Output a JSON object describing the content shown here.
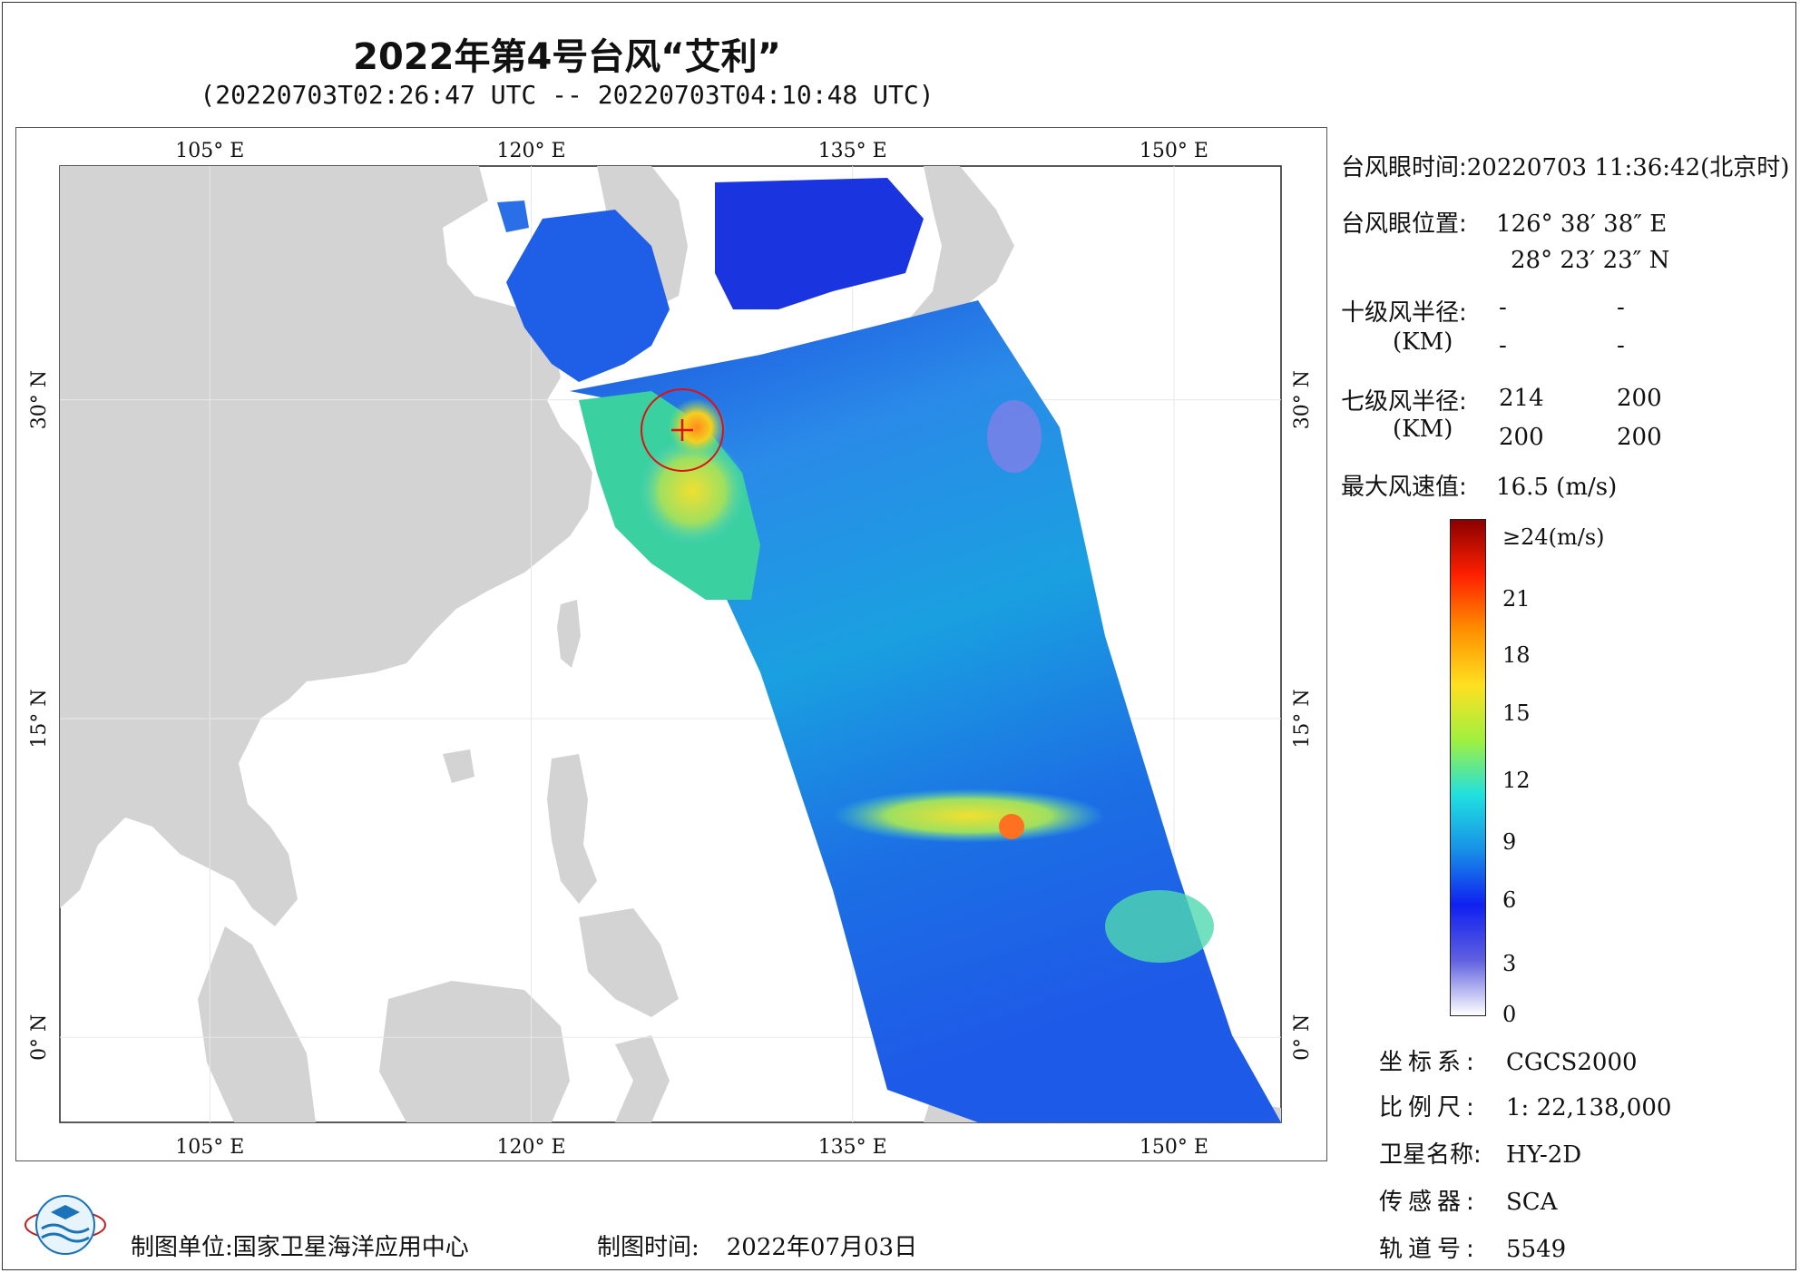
{
  "title": "2022年第4号台风“艾利”",
  "subtitle": "(20220703T02:26:47 UTC -- 20220703T04:10:48 UTC)",
  "map": {
    "lon_ticks": [
      "105° E",
      "120° E",
      "135° E",
      "150° E"
    ],
    "lat_ticks": [
      "30° N",
      "15° N",
      "0° N"
    ],
    "extent": {
      "lon": [
        98,
        155
      ],
      "lat": [
        -4,
        41
      ]
    }
  },
  "info": {
    "eye_time_label": "台风眼时间:",
    "eye_time_value": "20220703 11:36:42(北京时)",
    "eye_pos_label": "台风眼位置:",
    "eye_lon": "126° 38′ 38″ E",
    "eye_lat": "28° 23′ 23″ N",
    "r10_label": "十级风半径:",
    "r10_unit": "(KM)",
    "r10_values": [
      "-",
      "-",
      "-",
      "-"
    ],
    "r7_label": "七级风半径:",
    "r7_unit": "(KM)",
    "r7_values": [
      "214",
      "200",
      "200",
      "200"
    ],
    "max_wind_label": "最大风速值:",
    "max_wind_value": "16.5  (m/s)"
  },
  "colorbar": {
    "labels": [
      "≥24(m/s)",
      "21",
      "18",
      "15",
      "12",
      "9",
      "6",
      "3",
      "0"
    ],
    "colors": [
      "#8b0000",
      "#ff2000",
      "#ff9000",
      "#ffe020",
      "#a0f040",
      "#20e0e0",
      "#1890e8",
      "#1020f0",
      "#6060e0",
      "#ffffff"
    ]
  },
  "meta": {
    "crs_label": "坐标系:",
    "crs_value": "CGCS2000",
    "scale_label": "比例尺:",
    "scale_value": "1: 22,138,000",
    "sat_label": "卫星名称:",
    "sat_value": "HY-2D",
    "sensor_label": "传感器:",
    "sensor_value": "SCA",
    "orbit_label": "轨道号:",
    "orbit_value": "5549"
  },
  "footer": {
    "unit_label": "制图单位:",
    "unit_value": "国家卫星海洋应用中心",
    "time_label": "制图时间:",
    "time_value": "2022年07月03日"
  }
}
